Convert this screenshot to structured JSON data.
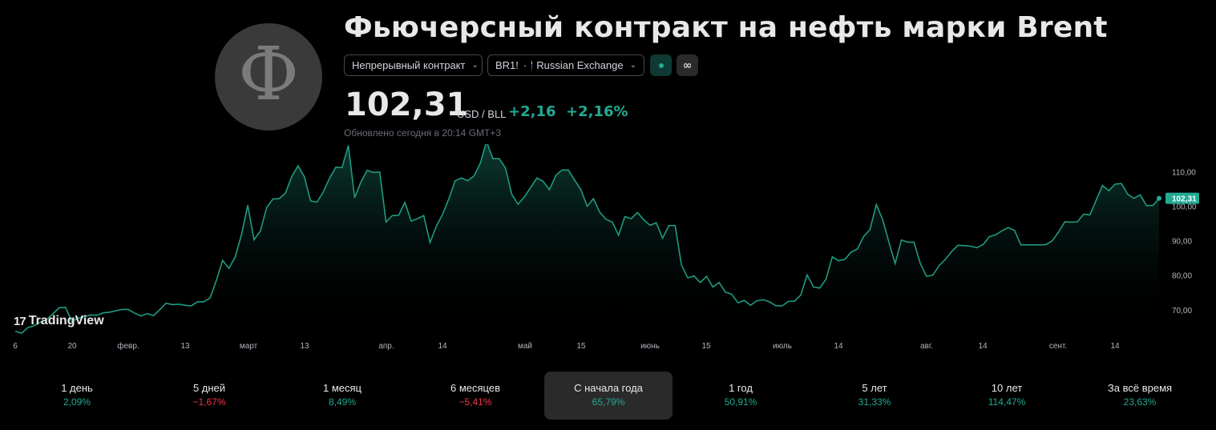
{
  "header": {
    "logo_glyph": "Ф",
    "title": "Фьючерсный контракт на нефть марки Brent",
    "contract_dropdown": "Непрерывный контракт",
    "symbol": "BR1!",
    "separator": "·",
    "exchange": "Russian Exchange",
    "status_icon": "market-open-dot-icon",
    "infinity_icon": "infinity-icon",
    "price": "102,31",
    "unit": "USD / BLL",
    "change_abs": "+2,16",
    "change_pct": "+2,16%",
    "updated": "Обновлено сегодня в 20:14 GMT+3"
  },
  "watermark": "TradingView",
  "chart_data": {
    "type": "area",
    "x_ticks": [
      "6",
      "20",
      "февр.",
      "13",
      "март",
      "13",
      "апр.",
      "14",
      "май",
      "15",
      "июнь",
      "15",
      "июль",
      "14",
      "авг.",
      "14",
      "сент.",
      "14"
    ],
    "y_ticks": [
      "110,00",
      "100,00",
      "90,00",
      "80,00",
      "70,00"
    ],
    "ylim": [
      63,
      118
    ],
    "last_value_label": "102,31",
    "series": [
      {
        "values": [
          63.8,
          63.2,
          64.8,
          65.4,
          66.4,
          67.2,
          68.8,
          70.6,
          70.7,
          66.6,
          67.6,
          68.0,
          68.5,
          68.4,
          69.1,
          69.3,
          69.7,
          70.1,
          70.1,
          69.0,
          68.2,
          68.9,
          68.3,
          70.0,
          71.9,
          71.5,
          71.6,
          71.3,
          71.1,
          72.3,
          72.3,
          73.4,
          78.5,
          84.3,
          82.0,
          85.3,
          91.8,
          100.3,
          90.3,
          92.8,
          99.6,
          102.1,
          102.2,
          103.8,
          108.6,
          111.7,
          108.6,
          101.5,
          101.2,
          104.1,
          108.1,
          111.3,
          111.2,
          117.6,
          102.5,
          107.0,
          110.4,
          109.8,
          109.9,
          95.4,
          97.3,
          97.4,
          101.1,
          95.7,
          96.4,
          97.3,
          89.5,
          94.2,
          97.7,
          102.2,
          107.4,
          108.2,
          107.4,
          108.8,
          112.5,
          118.8,
          113.8,
          113.8,
          111.1,
          103.5,
          100.6,
          102.7,
          105.4,
          108.2,
          107.2,
          104.8,
          108.9,
          110.5,
          110.5,
          107.6,
          104.8,
          100.0,
          102.2,
          98.3,
          96.2,
          95.4,
          91.6,
          97.0,
          96.4,
          98.2,
          96.1,
          94.5,
          95.2,
          90.7,
          94.4,
          94.4,
          83.0,
          79.2,
          79.8,
          77.9,
          79.7,
          76.6,
          77.9,
          75.1,
          74.5,
          72.0,
          72.7,
          71.3,
          72.6,
          72.9,
          72.3,
          71.2,
          71.1,
          72.4,
          72.5,
          74.3,
          80.1,
          76.6,
          76.3,
          78.8,
          85.3,
          84.2,
          84.6,
          86.7,
          87.6,
          91.3,
          93.2,
          100.5,
          96.2,
          89.6,
          83.4,
          90.2,
          89.6,
          89.6,
          83.4,
          79.7,
          80.0,
          82.8,
          84.6,
          86.9,
          88.7,
          88.6,
          88.4,
          88.0,
          88.9,
          91.2,
          91.7,
          92.9,
          93.8,
          93.0,
          88.8,
          88.8,
          88.8,
          88.8,
          88.9,
          90.0,
          92.5,
          95.5,
          95.4,
          95.5,
          97.7,
          97.5,
          101.8,
          106.0,
          104.5,
          106.4,
          106.6,
          103.5,
          102.3,
          103.3,
          100.2,
          100.2,
          102.3
        ]
      }
    ]
  },
  "periods": [
    {
      "label": "1 день",
      "value": "2,09%",
      "dir": "up"
    },
    {
      "label": "5 дней",
      "value": "−1,67%",
      "dir": "down"
    },
    {
      "label": "1 месяц",
      "value": "8,49%",
      "dir": "up"
    },
    {
      "label": "6 месяцев",
      "value": "−5,41%",
      "dir": "down"
    },
    {
      "label": "С начала года",
      "value": "65,79%",
      "dir": "up",
      "active": true
    },
    {
      "label": "1 год",
      "value": "50,91%",
      "dir": "up"
    },
    {
      "label": "5 лет",
      "value": "31,33%",
      "dir": "up"
    },
    {
      "label": "10 лет",
      "value": "114,47%",
      "dir": "up"
    },
    {
      "label": "За всё время",
      "value": "23,63%",
      "dir": "up"
    }
  ],
  "colors": {
    "up": "#22ab94",
    "down": "#f23645",
    "line": "#1f9a82",
    "active_bg": "#2a2a2a"
  }
}
